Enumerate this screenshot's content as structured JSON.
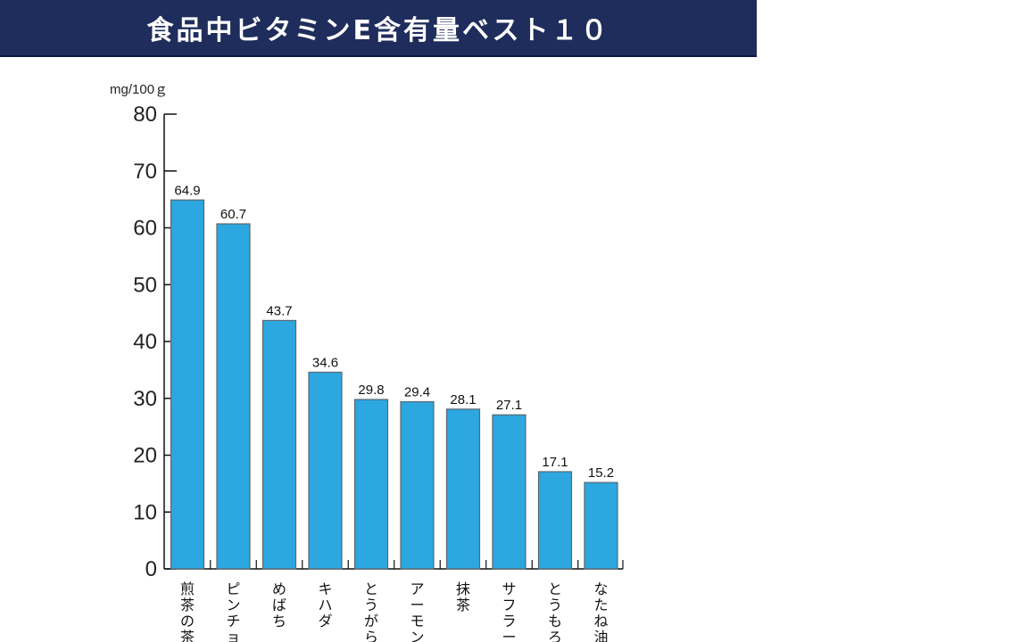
{
  "header": {
    "title": "食品中ビタミンE含有量ベスト１０"
  },
  "chart_data": {
    "type": "bar",
    "title": "食品中ビタミンE含有量ベスト１０",
    "ylabel": "mg/100ｇ",
    "xlabel": "",
    "ylim": [
      0,
      80
    ],
    "yticks": [
      0,
      10,
      20,
      30,
      40,
      50,
      60,
      70,
      80
    ],
    "grid": false,
    "categories": [
      "煎茶の茶",
      "ピンチョ",
      "めばち",
      "キハダ",
      "とうがら",
      "アーモン",
      "抹茶",
      "サフラー",
      "とうもろ",
      "なたね油"
    ],
    "values": [
      64.9,
      60.7,
      43.7,
      34.6,
      29.8,
      29.4,
      28.1,
      27.1,
      17.1,
      15.2
    ],
    "value_labels": [
      "64.9",
      "60.7",
      "43.7",
      "34.6",
      "29.8",
      "29.4",
      "28.1",
      "27.1",
      "17.1",
      "15.2"
    ],
    "bar_color": "#2ca7e0",
    "bar_edge_color": "#5b6770"
  }
}
